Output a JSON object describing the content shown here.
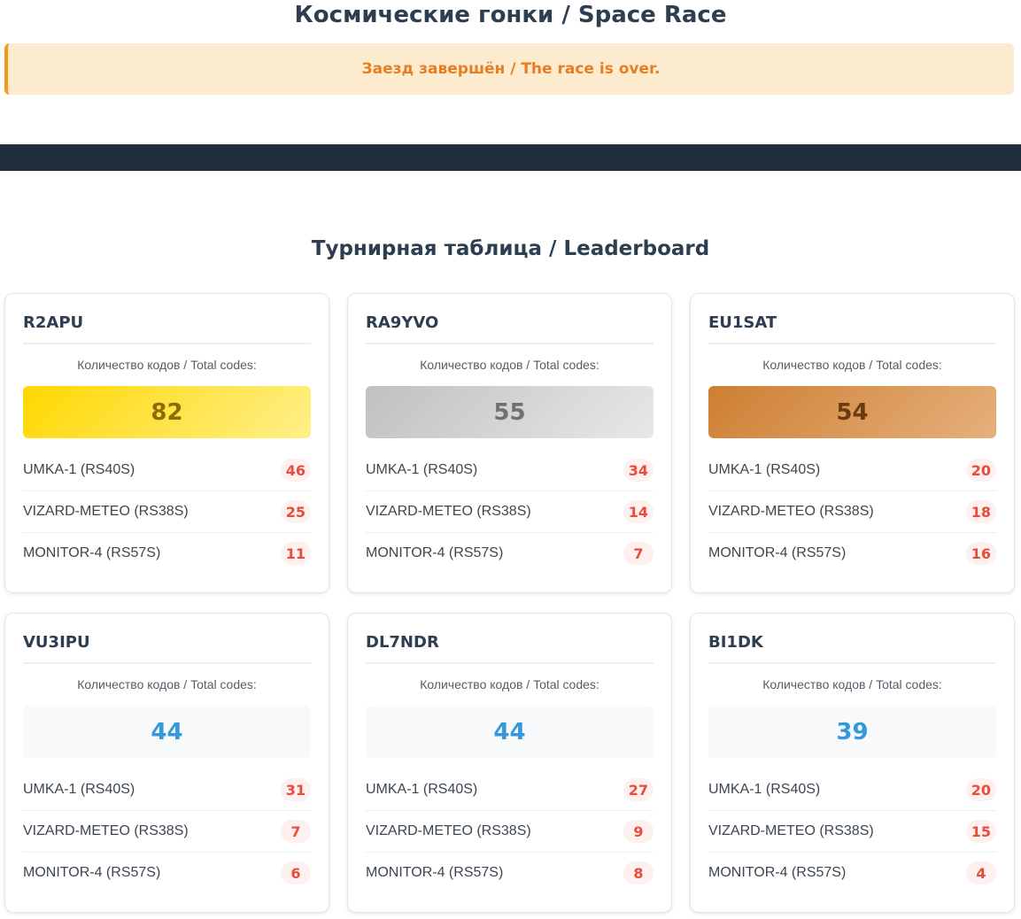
{
  "header": {
    "title": "Космические гонки / Space Race"
  },
  "notice": {
    "text": "Заезд завершён / The race is over."
  },
  "leaderboard": {
    "title": "Турнирная таблица / Leaderboard",
    "total_label": "Количество кодов / Total codes:",
    "medal_colors": {
      "gold": "#ffd700",
      "silver": "#c0c0c0",
      "bronze": "#cd7f32"
    },
    "participants": [
      {
        "callsign": "R2APU",
        "total": "82",
        "medal": "gold",
        "satellites": [
          {
            "name": "UMKA-1 (RS40S)",
            "count": "46"
          },
          {
            "name": "VIZARD-METEO (RS38S)",
            "count": "25"
          },
          {
            "name": "MONITOR-4 (RS57S)",
            "count": "11"
          }
        ]
      },
      {
        "callsign": "RA9YVO",
        "total": "55",
        "medal": "silver",
        "satellites": [
          {
            "name": "UMKA-1 (RS40S)",
            "count": "34"
          },
          {
            "name": "VIZARD-METEO (RS38S)",
            "count": "14"
          },
          {
            "name": "MONITOR-4 (RS57S)",
            "count": "7"
          }
        ]
      },
      {
        "callsign": "EU1SAT",
        "total": "54",
        "medal": "bronze",
        "satellites": [
          {
            "name": "UMKA-1 (RS40S)",
            "count": "20"
          },
          {
            "name": "VIZARD-METEO (RS38S)",
            "count": "18"
          },
          {
            "name": "MONITOR-4 (RS57S)",
            "count": "16"
          }
        ]
      },
      {
        "callsign": "VU3IPU",
        "total": "44",
        "medal": "none",
        "satellites": [
          {
            "name": "UMKA-1 (RS40S)",
            "count": "31"
          },
          {
            "name": "VIZARD-METEO (RS38S)",
            "count": "7"
          },
          {
            "name": "MONITOR-4 (RS57S)",
            "count": "6"
          }
        ]
      },
      {
        "callsign": "DL7NDR",
        "total": "44",
        "medal": "none",
        "satellites": [
          {
            "name": "UMKA-1 (RS40S)",
            "count": "27"
          },
          {
            "name": "VIZARD-METEO (RS38S)",
            "count": "9"
          },
          {
            "name": "MONITOR-4 (RS57S)",
            "count": "8"
          }
        ]
      },
      {
        "callsign": "BI1DK",
        "total": "39",
        "medal": "none",
        "satellites": [
          {
            "name": "UMKA-1 (RS40S)",
            "count": "20"
          },
          {
            "name": "VIZARD-METEO (RS38S)",
            "count": "15"
          },
          {
            "name": "MONITOR-4 (RS57S)",
            "count": "4"
          }
        ]
      }
    ]
  }
}
